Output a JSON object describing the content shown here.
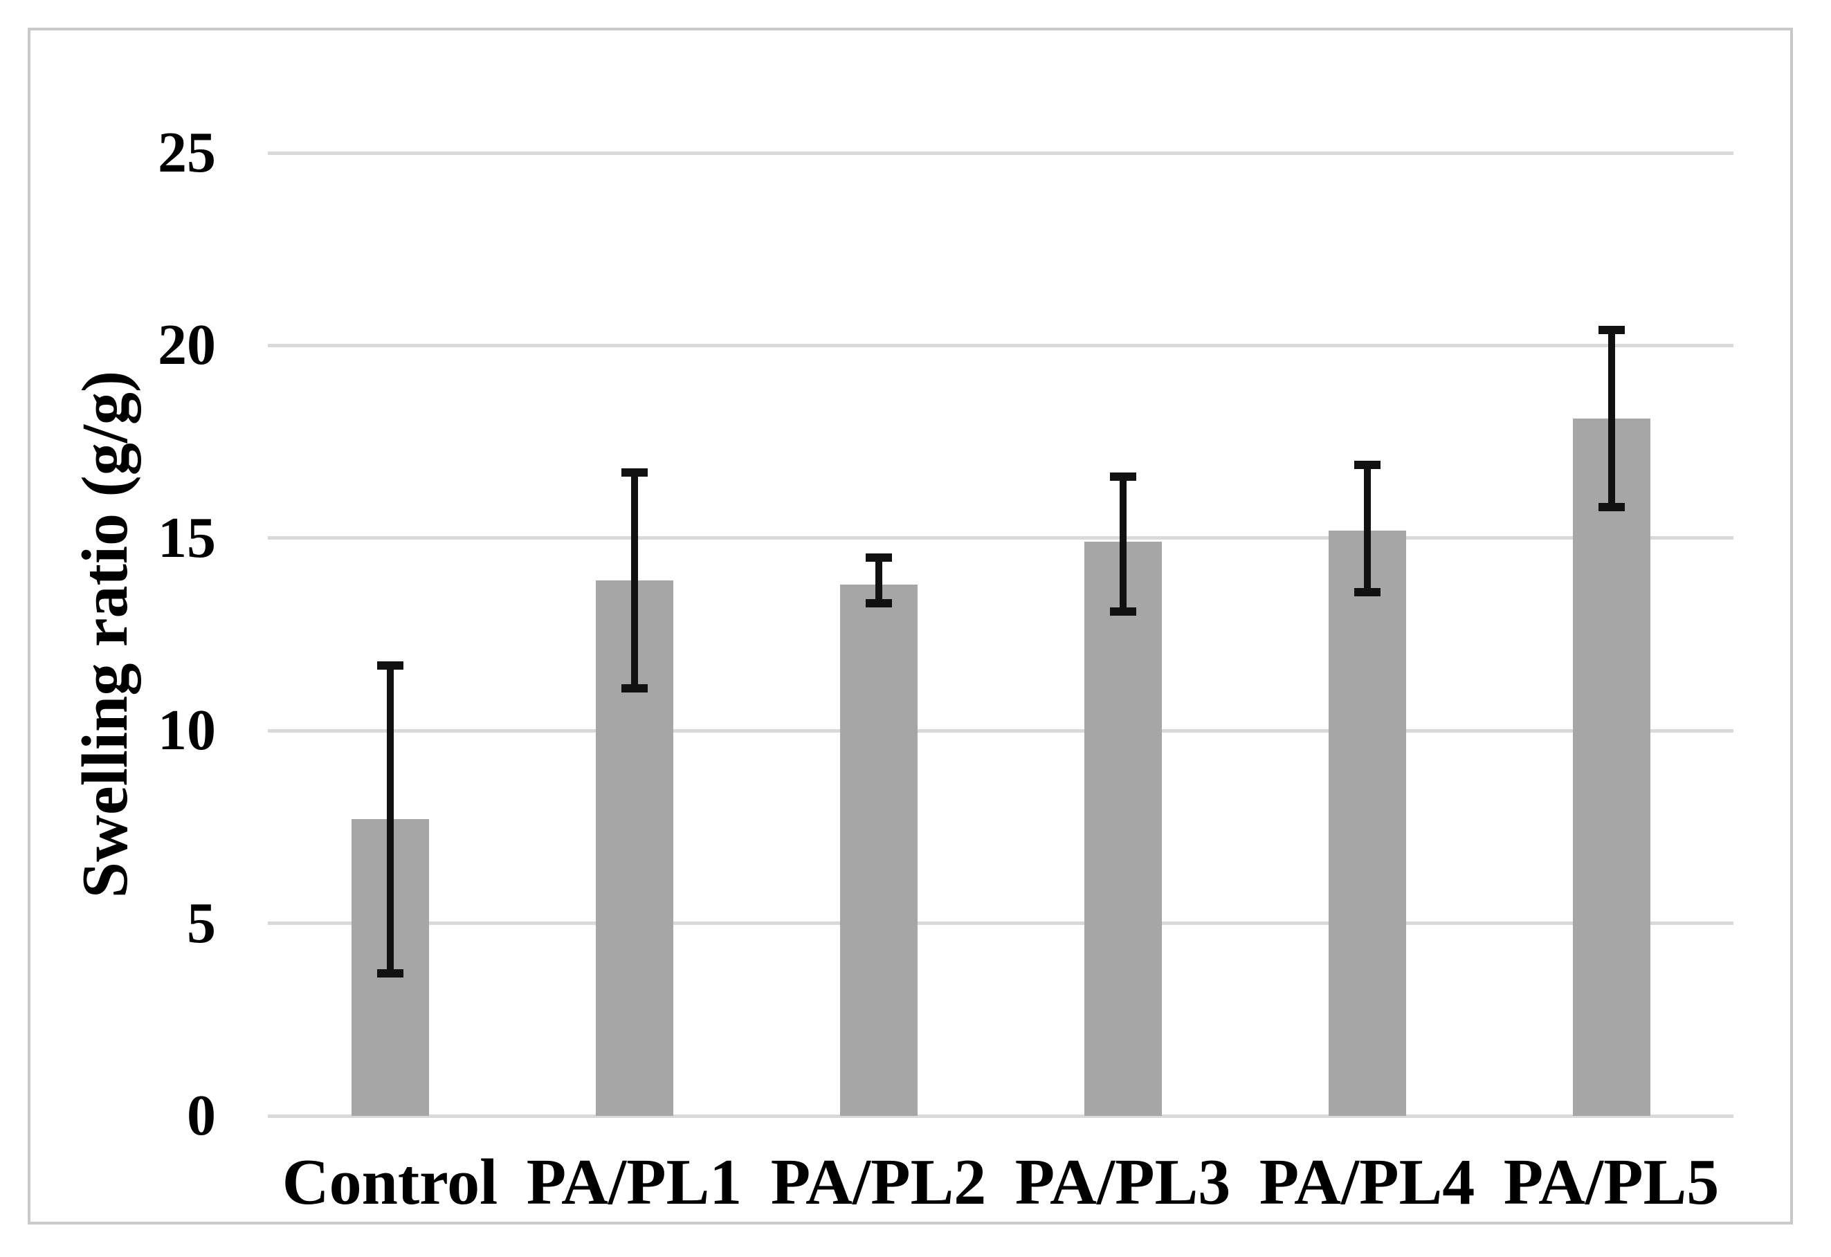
{
  "chart_data": {
    "type": "bar",
    "title": "",
    "xlabel": "",
    "ylabel": "Swelling ratio (g/g)",
    "categories": [
      "Control",
      "PA/PL1",
      "PA/PL2",
      "PA/PL3",
      "PA/PL4",
      "PA/PL5"
    ],
    "values": [
      7.7,
      13.9,
      13.8,
      14.9,
      15.2,
      18.1
    ],
    "error_top": [
      11.7,
      16.7,
      14.5,
      16.6,
      16.9,
      20.4
    ],
    "error_bottom": [
      3.7,
      11.1,
      13.3,
      13.1,
      13.6,
      15.8
    ],
    "ylim": [
      0,
      25
    ],
    "yticks": [
      0,
      5,
      10,
      15,
      20,
      25
    ],
    "grid": true,
    "legend": "none",
    "bar_color": "#a6a6a6",
    "gridline_color": "#d9d9d9",
    "frame_color": "#c9c9c9",
    "error_bar_color": "#111111",
    "text_color": "#000000"
  }
}
